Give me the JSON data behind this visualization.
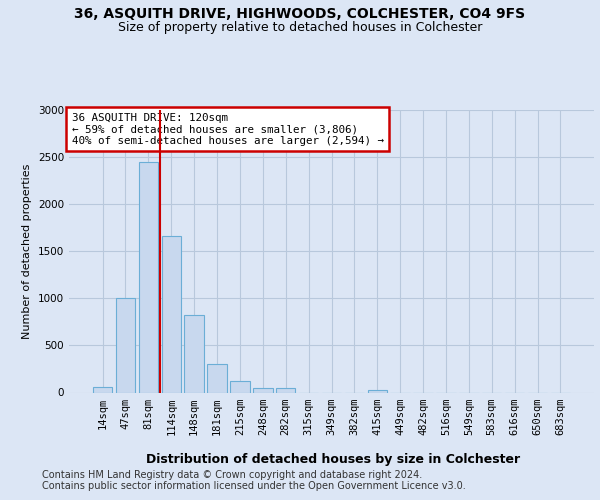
{
  "title": "36, ASQUITH DRIVE, HIGHWOODS, COLCHESTER, CO4 9FS",
  "subtitle": "Size of property relative to detached houses in Colchester",
  "xlabel": "Distribution of detached houses by size in Colchester",
  "ylabel": "Number of detached properties",
  "footer_line1": "Contains HM Land Registry data © Crown copyright and database right 2024.",
  "footer_line2": "Contains public sector information licensed under the Open Government Licence v3.0.",
  "categories": [
    "14sqm",
    "47sqm",
    "81sqm",
    "114sqm",
    "148sqm",
    "181sqm",
    "215sqm",
    "248sqm",
    "282sqm",
    "315sqm",
    "349sqm",
    "382sqm",
    "415sqm",
    "449sqm",
    "482sqm",
    "516sqm",
    "549sqm",
    "583sqm",
    "616sqm",
    "650sqm",
    "683sqm"
  ],
  "values": [
    60,
    1000,
    2450,
    1660,
    820,
    300,
    120,
    50,
    45,
    0,
    0,
    0,
    30,
    0,
    0,
    0,
    0,
    0,
    0,
    0,
    0
  ],
  "bar_color": "#c8d8ee",
  "bar_edge_color": "#6baed6",
  "annotation_line1": "36 ASQUITH DRIVE: 120sqm",
  "annotation_line2": "← 59% of detached houses are smaller (3,806)",
  "annotation_line3": "40% of semi-detached houses are larger (2,594) →",
  "vline_color": "#cc0000",
  "vline_x": 2.5,
  "annotation_box_edgecolor": "#cc0000",
  "ylim_max": 3000,
  "yticks": [
    0,
    500,
    1000,
    1500,
    2000,
    2500,
    3000
  ],
  "background_color": "#dce6f5",
  "grid_color": "#b8c8dc",
  "title_fontsize": 10,
  "subtitle_fontsize": 9,
  "axis_label_fontsize": 8,
  "tick_fontsize": 7.5,
  "footer_fontsize": 7
}
